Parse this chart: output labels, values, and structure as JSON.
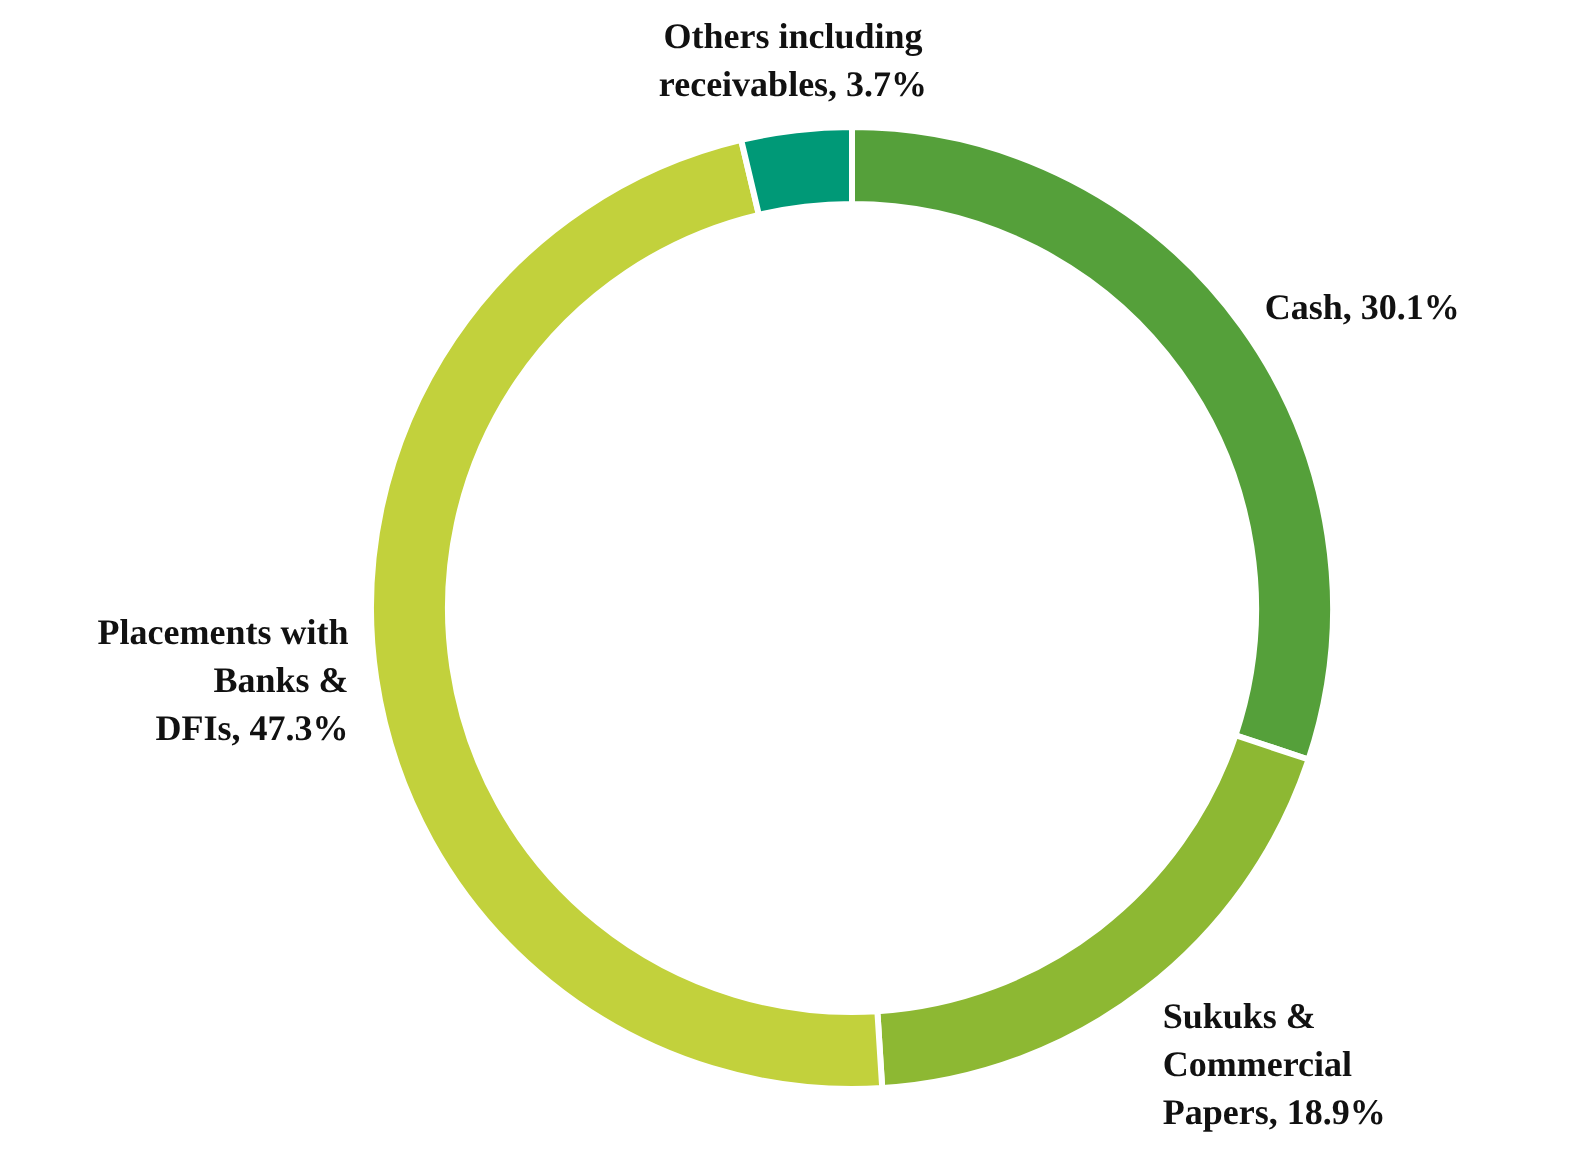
{
  "chart_data": {
    "type": "donut",
    "categories": [
      "Cash",
      "Sukuks & Commercial Papers",
      "Placements with Banks & DFIs",
      "Others including receivables"
    ],
    "values": [
      30.1,
      18.9,
      47.3,
      3.7
    ],
    "value_labels": [
      "30.1%",
      "18.9%",
      "47.3%",
      "3.7%"
    ],
    "colors": [
      "#55a03a",
      "#8db833",
      "#c2d13c",
      "#009977"
    ],
    "legend": false
  }
}
